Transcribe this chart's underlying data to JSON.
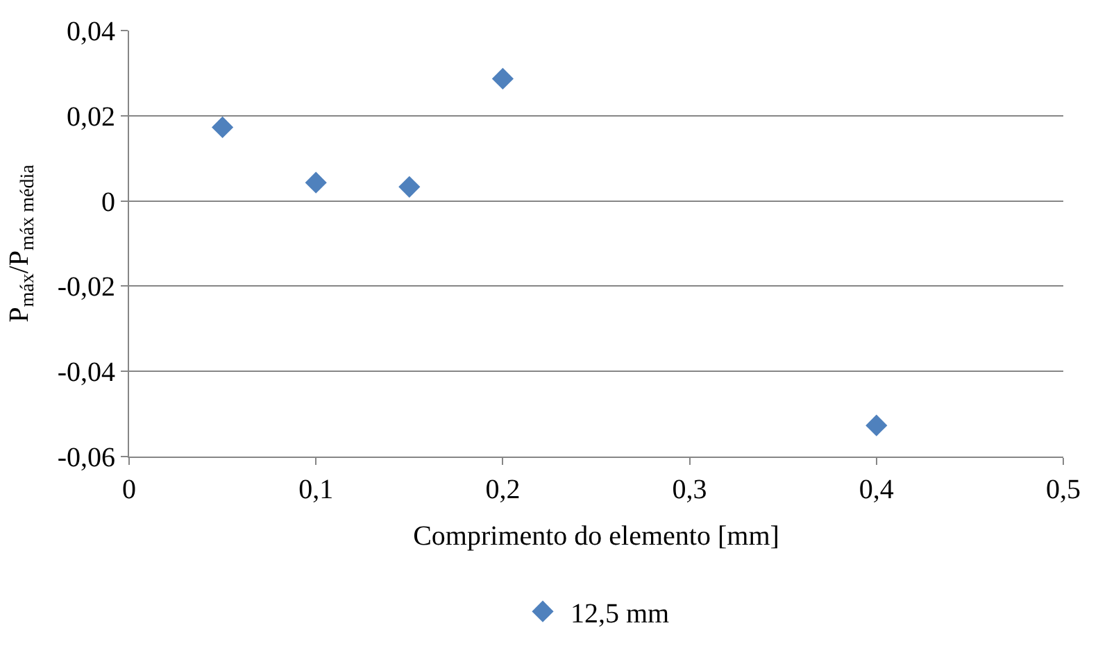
{
  "chart_data": {
    "type": "scatter",
    "xlabel": "Comprimento do elemento [mm]",
    "ylabel": "P$_{máx}$/P$_{máx média}$",
    "x": [
      0.05,
      0.1,
      0.15,
      0.2,
      0.4
    ],
    "series": [
      {
        "name": "12,5 mm",
        "color": "#4f81bd",
        "values": [
          0.0173,
          0.0043,
          0.0033,
          0.0287,
          -0.0527
        ]
      }
    ],
    "xlim": [
      0,
      0.5
    ],
    "xticks": [
      {
        "value": 0,
        "label": "0"
      },
      {
        "value": 0.1,
        "label": "0,1"
      },
      {
        "value": 0.2,
        "label": "0,2"
      },
      {
        "value": 0.3,
        "label": "0,3"
      },
      {
        "value": 0.4,
        "label": "0,4"
      },
      {
        "value": 0.5,
        "label": "0,5"
      }
    ],
    "ylim": [
      -0.06,
      0.04
    ],
    "yticks": [
      {
        "value": -0.06,
        "label": "-0,06"
      },
      {
        "value": -0.04,
        "label": "-0,04"
      },
      {
        "value": -0.02,
        "label": "-0,02"
      },
      {
        "value": 0,
        "label": "0"
      },
      {
        "value": 0.02,
        "label": "0,02"
      },
      {
        "value": 0.04,
        "label": "0,04"
      }
    ],
    "grid": "y",
    "legend": "bottom",
    "marker": "diamond"
  }
}
